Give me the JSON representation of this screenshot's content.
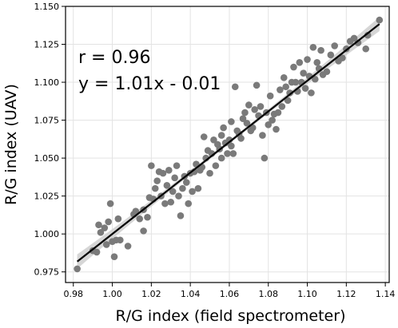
{
  "chart_data": {
    "type": "scatter",
    "xlabel": "R/G index (field spectrometer)",
    "ylabel": "R/G index (UAV)",
    "xlim": [
      0.976,
      1.142
    ],
    "ylim": [
      0.968,
      1.15
    ],
    "xticks": [
      0.98,
      1.0,
      1.02,
      1.04,
      1.06,
      1.08,
      1.1,
      1.12,
      1.14
    ],
    "xtick_labels": [
      "0.98",
      "1.00",
      "1.02",
      "1.04",
      "1.06",
      "1.08",
      "1.10",
      "1.12",
      "1.14"
    ],
    "yticks": [
      0.975,
      1.0,
      1.025,
      1.05,
      1.075,
      1.1,
      1.125,
      1.15
    ],
    "ytick_labels": [
      "0.975",
      "1.000",
      "1.025",
      "1.050",
      "1.075",
      "1.100",
      "1.125",
      "1.150"
    ],
    "grid": true,
    "annotations": [
      "r = 0.96",
      "y = 1.01x - 0.01"
    ],
    "fit_line": {
      "slope": 1.01,
      "intercept": -0.01,
      "x_range": [
        0.982,
        1.137
      ]
    },
    "point_color": "#7a7a7a",
    "line_color": "#000000",
    "band_color": "#cccccc",
    "points": [
      [
        0.982,
        0.977
      ],
      [
        0.99,
        0.989
      ],
      [
        0.992,
        0.988
      ],
      [
        0.993,
        1.006
      ],
      [
        0.994,
        1.001
      ],
      [
        0.996,
        1.004
      ],
      [
        0.997,
        0.993
      ],
      [
        0.998,
        1.008
      ],
      [
        0.999,
        1.02
      ],
      [
        1.0,
        0.995
      ],
      [
        1.001,
        0.985
      ],
      [
        1.002,
        0.996
      ],
      [
        1.003,
        1.01
      ],
      [
        1.004,
        0.996
      ],
      [
        1.008,
        0.992
      ],
      [
        1.011,
        1.013
      ],
      [
        1.012,
        1.015
      ],
      [
        1.014,
        1.01
      ],
      [
        1.016,
        1.002
      ],
      [
        1.016,
        1.016
      ],
      [
        1.018,
        1.011
      ],
      [
        1.019,
        1.024
      ],
      [
        1.02,
        1.045
      ],
      [
        1.021,
        1.023
      ],
      [
        1.022,
        1.03
      ],
      [
        1.023,
        1.035
      ],
      [
        1.024,
        1.041
      ],
      [
        1.025,
        1.025
      ],
      [
        1.026,
        1.04
      ],
      [
        1.027,
        1.02
      ],
      [
        1.028,
        1.032
      ],
      [
        1.029,
        1.042
      ],
      [
        1.03,
        1.021
      ],
      [
        1.031,
        1.028
      ],
      [
        1.032,
        1.037
      ],
      [
        1.033,
        1.045
      ],
      [
        1.034,
        1.025
      ],
      [
        1.035,
        1.012
      ],
      [
        1.036,
        1.03
      ],
      [
        1.037,
        1.038
      ],
      [
        1.038,
        1.034
      ],
      [
        1.039,
        1.02
      ],
      [
        1.04,
        1.04
      ],
      [
        1.041,
        1.028
      ],
      [
        1.042,
        1.041
      ],
      [
        1.043,
        1.046
      ],
      [
        1.044,
        1.03
      ],
      [
        1.045,
        1.042
      ],
      [
        1.046,
        1.044
      ],
      [
        1.047,
        1.064
      ],
      [
        1.048,
        1.05
      ],
      [
        1.049,
        1.055
      ],
      [
        1.05,
        1.04
      ],
      [
        1.051,
        1.053
      ],
      [
        1.052,
        1.062
      ],
      [
        1.053,
        1.045
      ],
      [
        1.054,
        1.059
      ],
      [
        1.055,
        1.056
      ],
      [
        1.056,
        1.05
      ],
      [
        1.057,
        1.07
      ],
      [
        1.058,
        1.06
      ],
      [
        1.059,
        1.053
      ],
      [
        1.06,
        1.062
      ],
      [
        1.061,
        1.074
      ],
      [
        1.062,
        1.053
      ],
      [
        1.063,
        1.097
      ],
      [
        1.064,
        1.068
      ],
      [
        1.065,
        1.066
      ],
      [
        1.066,
        1.063
      ],
      [
        1.067,
        1.076
      ],
      [
        1.068,
        1.08
      ],
      [
        1.069,
        1.073
      ],
      [
        1.07,
        1.085
      ],
      [
        1.071,
        1.068
      ],
      [
        1.072,
        1.07
      ],
      [
        1.073,
        1.082
      ],
      [
        1.074,
        1.098
      ],
      [
        1.075,
        1.078
      ],
      [
        1.076,
        1.084
      ],
      [
        1.077,
        1.065
      ],
      [
        1.078,
        1.05
      ],
      [
        1.079,
        1.08
      ],
      [
        1.08,
        1.072
      ],
      [
        1.081,
        1.091
      ],
      [
        1.082,
        1.075
      ],
      [
        1.083,
        1.079
      ],
      [
        1.084,
        1.069
      ],
      [
        1.085,
        1.08
      ],
      [
        1.086,
        1.095
      ],
      [
        1.087,
        1.084
      ],
      [
        1.088,
        1.103
      ],
      [
        1.089,
        1.097
      ],
      [
        1.09,
        1.088
      ],
      [
        1.091,
        1.093
      ],
      [
        1.092,
        1.1
      ],
      [
        1.093,
        1.11
      ],
      [
        1.094,
        1.1
      ],
      [
        1.095,
        1.094
      ],
      [
        1.096,
        1.113
      ],
      [
        1.097,
        1.1
      ],
      [
        1.098,
        1.106
      ],
      [
        1.099,
        1.096
      ],
      [
        1.1,
        1.115
      ],
      [
        1.101,
        1.104
      ],
      [
        1.102,
        1.093
      ],
      [
        1.103,
        1.123
      ],
      [
        1.104,
        1.102
      ],
      [
        1.105,
        1.113
      ],
      [
        1.106,
        1.109
      ],
      [
        1.107,
        1.121
      ],
      [
        1.108,
        1.105
      ],
      [
        1.11,
        1.107
      ],
      [
        1.112,
        1.118
      ],
      [
        1.114,
        1.124
      ],
      [
        1.116,
        1.114
      ],
      [
        1.118,
        1.116
      ],
      [
        1.12,
        1.122
      ],
      [
        1.122,
        1.127
      ],
      [
        1.124,
        1.129
      ],
      [
        1.126,
        1.126
      ],
      [
        1.13,
        1.122
      ],
      [
        1.131,
        1.131
      ],
      [
        1.137,
        1.141
      ],
      [
        1.061,
        1.058
      ],
      [
        1.056,
        1.065
      ]
    ]
  }
}
